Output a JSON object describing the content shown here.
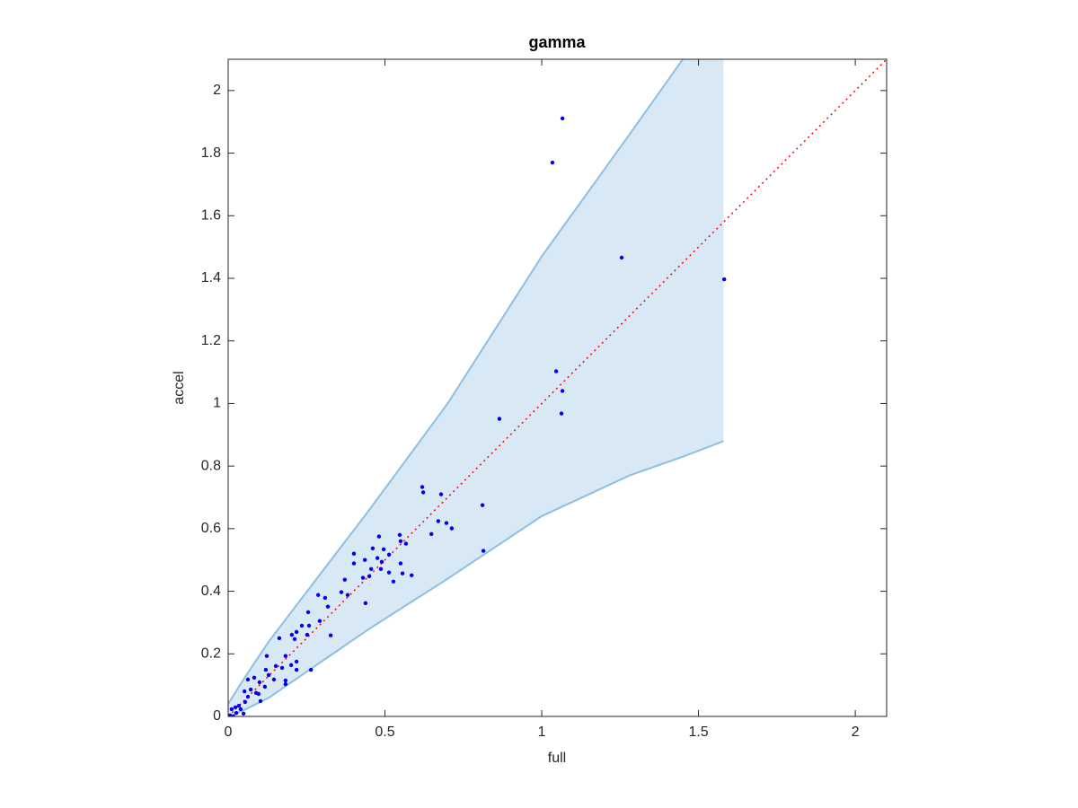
{
  "chart_data": {
    "type": "scatter",
    "title": "gamma",
    "x_label": "full",
    "y_label": "accel",
    "xlim": [
      0,
      2.1
    ],
    "ylim": [
      0,
      2.1
    ],
    "xticks": [
      0,
      0.5,
      1,
      1.5,
      2
    ],
    "yticks": [
      0,
      0.2,
      0.4,
      0.6,
      0.8,
      1,
      1.2,
      1.4,
      1.6,
      1.8,
      2
    ],
    "band": {
      "color": "#d9e8f5",
      "edge_color": "#8dbfe0",
      "x": [
        0,
        0.05,
        0.13,
        0.29,
        0.45,
        0.7,
        1.0,
        1.28,
        1.45,
        1.58
      ],
      "upper": [
        0.04,
        0.12,
        0.24,
        0.45,
        0.66,
        1.0,
        1.47,
        1.86,
        2.1,
        2.3
      ],
      "lower": [
        0,
        0.02,
        0.06,
        0.17,
        0.28,
        0.44,
        0.64,
        0.77,
        0.83,
        0.88
      ]
    },
    "reference_line": {
      "color": "#ff0000",
      "x": [
        0,
        2.1
      ],
      "y": [
        0,
        2.1
      ]
    },
    "points": {
      "color": "#0000ee",
      "x": [
        1.066,
        1.034,
        1.255,
        1.582,
        1.046,
        1.066,
        1.063,
        0.865,
        0.619,
        0.622,
        0.679,
        0.811,
        0.67,
        0.696,
        0.713,
        0.648,
        0.547,
        0.55,
        0.481,
        0.461,
        0.496,
        0.567,
        0.401,
        0.513,
        0.476,
        0.436,
        0.401,
        0.55,
        0.487,
        0.456,
        0.49,
        0.513,
        0.527,
        0.556,
        0.585,
        0.372,
        0.45,
        0.43,
        0.361,
        0.381,
        0.287,
        0.309,
        0.318,
        0.438,
        0.292,
        0.255,
        0.235,
        0.258,
        0.218,
        0.203,
        0.327,
        0.163,
        0.252,
        0.212,
        0.123,
        0.183,
        0.218,
        0.201,
        0.152,
        0.172,
        0.218,
        0.264,
        0.12,
        0.129,
        0.083,
        0.063,
        0.146,
        0.183,
        0.183,
        0.1,
        0.117,
        0.072,
        0.052,
        0.089,
        0.097,
        0.063,
        0.103,
        0.054,
        0.034,
        0.023,
        0.04,
        0.011,
        0.026,
        0.006,
        0.017,
        0.049,
        0.814
      ],
      "y": [
        1.911,
        1.77,
        1.466,
        1.397,
        1.103,
        1.04,
        0.968,
        0.951,
        0.733,
        0.716,
        0.71,
        0.675,
        0.624,
        0.618,
        0.601,
        0.583,
        0.58,
        0.56,
        0.575,
        0.537,
        0.534,
        0.552,
        0.52,
        0.517,
        0.506,
        0.5,
        0.489,
        0.489,
        0.471,
        0.471,
        0.494,
        0.46,
        0.431,
        0.457,
        0.451,
        0.437,
        0.448,
        0.443,
        0.397,
        0.388,
        0.388,
        0.379,
        0.351,
        0.362,
        0.305,
        0.333,
        0.29,
        0.29,
        0.27,
        0.261,
        0.259,
        0.25,
        0.261,
        0.247,
        0.193,
        0.193,
        0.175,
        0.164,
        0.161,
        0.155,
        0.149,
        0.149,
        0.149,
        0.132,
        0.124,
        0.118,
        0.118,
        0.115,
        0.103,
        0.109,
        0.095,
        0.086,
        0.08,
        0.075,
        0.072,
        0.063,
        0.049,
        0.046,
        0.034,
        0.029,
        0.023,
        0.023,
        0.011,
        0.003,
        0.0,
        0.009,
        0.529
      ]
    }
  }
}
